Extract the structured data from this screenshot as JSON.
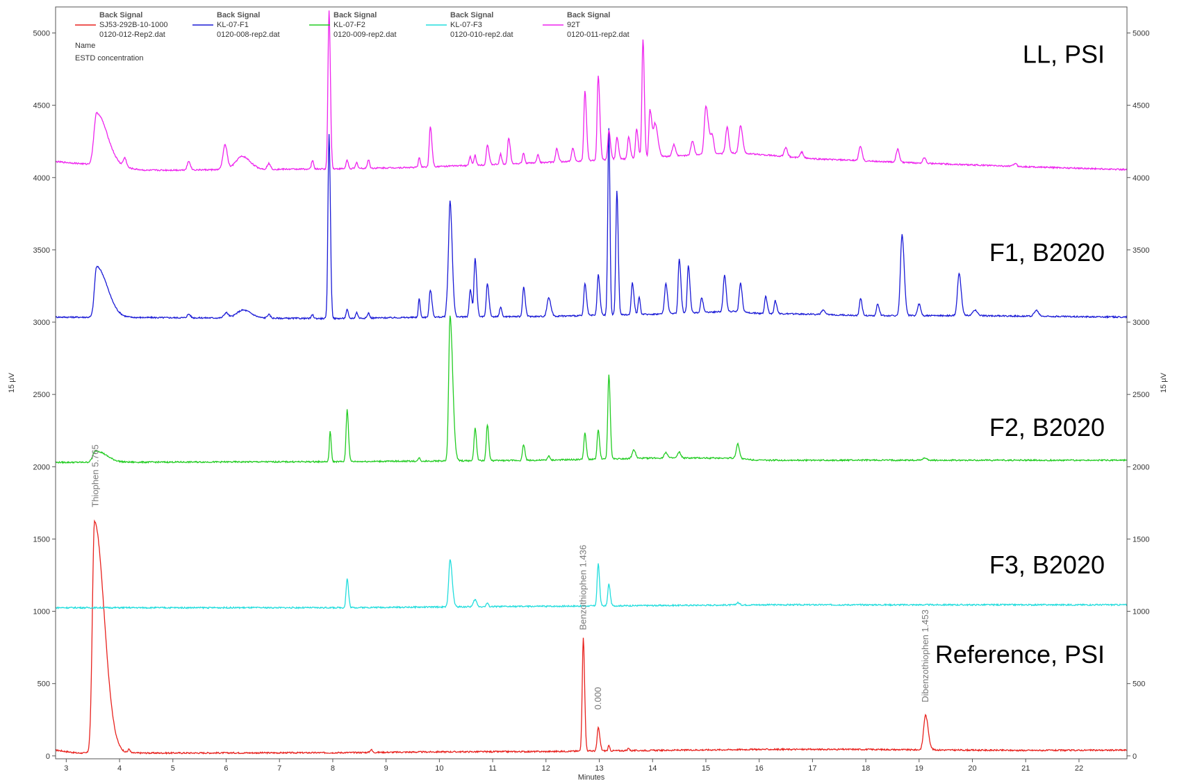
{
  "chart_data": {
    "type": "line",
    "xlabel": "Minutes",
    "ylabel": "15 µV",
    "xlim": [
      2.8,
      22.9
    ],
    "ylim": [
      -20,
      5180
    ],
    "x_ticks": [
      3,
      4,
      5,
      6,
      7,
      8,
      9,
      10,
      11,
      12,
      13,
      14,
      15,
      16,
      17,
      18,
      19,
      20,
      21,
      22
    ],
    "y_ticks": [
      0,
      500,
      1000,
      1500,
      2000,
      2500,
      3000,
      3500,
      4000,
      4500,
      5000
    ],
    "legend": {
      "position": "top-left",
      "header": "Back Signal",
      "row_name_label": "Name",
      "row_conc_label": "ESTD concentration",
      "entries": [
        {
          "sample": "SJ53-292B-10-1000",
          "file": "0120-012-Rep2.dat",
          "color": "#e8211d"
        },
        {
          "sample": "KL-07-F1",
          "file": "0120-008-rep2.dat",
          "color": "#1a1ad6"
        },
        {
          "sample": "KL-07-F2",
          "file": "0120-009-rep2.dat",
          "color": "#22cc22"
        },
        {
          "sample": "KL-07-F3",
          "file": "0120-010-rep2.dat",
          "color": "#22dddd"
        },
        {
          "sample": "92T",
          "file": "0120-011-rep2.dat",
          "color": "#ee22ee"
        }
      ]
    },
    "trace_labels": [
      {
        "text": "LL, PSI",
        "y": 4850
      },
      {
        "text": "F1, B2020",
        "y": 3480
      },
      {
        "text": "F2, B2020",
        "y": 2270
      },
      {
        "text": "F3, B2020",
        "y": 1320
      },
      {
        "text": "Reference, PSI",
        "y": 700
      }
    ],
    "series": [
      {
        "name": "SJ53-292B-10-1000",
        "color": "#e8211d",
        "baseline": [
          [
            2.8,
            40
          ],
          [
            3.2,
            20
          ],
          [
            5,
            20
          ],
          [
            8,
            22
          ],
          [
            10,
            28
          ],
          [
            12,
            30
          ],
          [
            13,
            35
          ],
          [
            14,
            38
          ],
          [
            16,
            45
          ],
          [
            18,
            45
          ],
          [
            19,
            42
          ],
          [
            21,
            38
          ],
          [
            22.9,
            40
          ]
        ],
        "peaks": [
          {
            "x": 3.53,
            "h": 1600,
            "wl": 0.04,
            "wr": 0.18
          },
          {
            "x": 4.18,
            "h": 25,
            "wl": 0.02,
            "wr": 0.02
          },
          {
            "x": 8.72,
            "h": 20,
            "wl": 0.02,
            "wr": 0.02
          },
          {
            "x": 12.7,
            "h": 780,
            "wl": 0.02,
            "wr": 0.025
          },
          {
            "x": 12.98,
            "h": 160,
            "wl": 0.02,
            "wr": 0.03
          },
          {
            "x": 13.18,
            "h": 35,
            "wl": 0.015,
            "wr": 0.015
          },
          {
            "x": 13.55,
            "h": 20,
            "wl": 0.015,
            "wr": 0.015
          },
          {
            "x": 19.12,
            "h": 240,
            "wl": 0.035,
            "wr": 0.05
          }
        ]
      },
      {
        "name": "KL-07-F1",
        "color": "#1a1ad6",
        "baseline": [
          [
            2.8,
            3035
          ],
          [
            8,
            3025
          ],
          [
            10,
            3035
          ],
          [
            12,
            3040
          ],
          [
            14,
            3055
          ],
          [
            15.5,
            3075
          ],
          [
            16,
            3060
          ],
          [
            17,
            3055
          ],
          [
            18,
            3045
          ],
          [
            20,
            3045
          ],
          [
            22.9,
            3035
          ]
        ],
        "peaks": [
          {
            "x": 3.57,
            "h": 350,
            "wl": 0.04,
            "wr": 0.2
          },
          {
            "x": 5.3,
            "h": 25,
            "wl": 0.03,
            "wr": 0.03
          },
          {
            "x": 6.0,
            "h": 35,
            "wl": 0.04,
            "wr": 0.04
          },
          {
            "x": 6.32,
            "h": 55,
            "wl": 0.12,
            "wr": 0.15
          },
          {
            "x": 6.8,
            "h": 25,
            "wl": 0.03,
            "wr": 0.03
          },
          {
            "x": 7.62,
            "h": 25,
            "wl": 0.02,
            "wr": 0.02
          },
          {
            "x": 7.93,
            "h": 1280,
            "wl": 0.02,
            "wr": 0.025
          },
          {
            "x": 8.27,
            "h": 60,
            "wl": 0.02,
            "wr": 0.02
          },
          {
            "x": 8.45,
            "h": 40,
            "wl": 0.02,
            "wr": 0.02
          },
          {
            "x": 8.67,
            "h": 35,
            "wl": 0.02,
            "wr": 0.02
          },
          {
            "x": 9.62,
            "h": 130,
            "wl": 0.015,
            "wr": 0.02
          },
          {
            "x": 9.83,
            "h": 190,
            "wl": 0.02,
            "wr": 0.03
          },
          {
            "x": 10.15,
            "h": 120,
            "wl": 0.02,
            "wr": 0.02
          },
          {
            "x": 10.2,
            "h": 800,
            "wl": 0.025,
            "wr": 0.04
          },
          {
            "x": 10.58,
            "h": 190,
            "wl": 0.02,
            "wr": 0.03
          },
          {
            "x": 10.67,
            "h": 400,
            "wl": 0.02,
            "wr": 0.03
          },
          {
            "x": 10.9,
            "h": 230,
            "wl": 0.02,
            "wr": 0.03
          },
          {
            "x": 11.15,
            "h": 70,
            "wl": 0.02,
            "wr": 0.02
          },
          {
            "x": 11.58,
            "h": 200,
            "wl": 0.02,
            "wr": 0.03
          },
          {
            "x": 12.05,
            "h": 130,
            "wl": 0.03,
            "wr": 0.04
          },
          {
            "x": 12.73,
            "h": 220,
            "wl": 0.02,
            "wr": 0.03
          },
          {
            "x": 12.98,
            "h": 280,
            "wl": 0.02,
            "wr": 0.03
          },
          {
            "x": 13.18,
            "h": 1290,
            "wl": 0.02,
            "wr": 0.02
          },
          {
            "x": 13.33,
            "h": 860,
            "wl": 0.02,
            "wr": 0.025
          },
          {
            "x": 13.62,
            "h": 220,
            "wl": 0.02,
            "wr": 0.03
          },
          {
            "x": 13.75,
            "h": 120,
            "wl": 0.02,
            "wr": 0.02
          },
          {
            "x": 14.25,
            "h": 210,
            "wl": 0.025,
            "wr": 0.03
          },
          {
            "x": 14.5,
            "h": 380,
            "wl": 0.02,
            "wr": 0.03
          },
          {
            "x": 14.67,
            "h": 330,
            "wl": 0.02,
            "wr": 0.03
          },
          {
            "x": 14.92,
            "h": 100,
            "wl": 0.02,
            "wr": 0.03
          },
          {
            "x": 15.35,
            "h": 250,
            "wl": 0.025,
            "wr": 0.03
          },
          {
            "x": 15.65,
            "h": 200,
            "wl": 0.025,
            "wr": 0.03
          },
          {
            "x": 16.12,
            "h": 120,
            "wl": 0.02,
            "wr": 0.03
          },
          {
            "x": 16.3,
            "h": 90,
            "wl": 0.02,
            "wr": 0.03
          },
          {
            "x": 17.2,
            "h": 30,
            "wl": 0.03,
            "wr": 0.03
          },
          {
            "x": 17.9,
            "h": 120,
            "wl": 0.02,
            "wr": 0.03
          },
          {
            "x": 18.22,
            "h": 80,
            "wl": 0.02,
            "wr": 0.03
          },
          {
            "x": 18.68,
            "h": 560,
            "wl": 0.03,
            "wr": 0.04
          },
          {
            "x": 19.0,
            "h": 80,
            "wl": 0.03,
            "wr": 0.03
          },
          {
            "x": 19.75,
            "h": 290,
            "wl": 0.03,
            "wr": 0.04
          },
          {
            "x": 20.05,
            "h": 40,
            "wl": 0.04,
            "wr": 0.04
          },
          {
            "x": 21.2,
            "h": 40,
            "wl": 0.04,
            "wr": 0.04
          }
        ]
      },
      {
        "name": "KL-07-F2",
        "color": "#22cc22",
        "baseline": [
          [
            2.8,
            2030
          ],
          [
            8,
            2035
          ],
          [
            10,
            2040
          ],
          [
            12,
            2045
          ],
          [
            14,
            2060
          ],
          [
            15.5,
            2060
          ],
          [
            16,
            2045
          ],
          [
            22.9,
            2045
          ]
        ],
        "peaks": [
          {
            "x": 3.55,
            "h": 80,
            "wl": 0.05,
            "wr": 0.2
          },
          {
            "x": 7.95,
            "h": 210,
            "wl": 0.015,
            "wr": 0.02
          },
          {
            "x": 8.27,
            "h": 360,
            "wl": 0.02,
            "wr": 0.025
          },
          {
            "x": 9.62,
            "h": 25,
            "wl": 0.015,
            "wr": 0.015
          },
          {
            "x": 10.2,
            "h": 1000,
            "wl": 0.025,
            "wr": 0.05
          },
          {
            "x": 10.67,
            "h": 230,
            "wl": 0.02,
            "wr": 0.025
          },
          {
            "x": 10.9,
            "h": 250,
            "wl": 0.02,
            "wr": 0.025
          },
          {
            "x": 11.58,
            "h": 110,
            "wl": 0.02,
            "wr": 0.025
          },
          {
            "x": 12.05,
            "h": 30,
            "wl": 0.02,
            "wr": 0.02
          },
          {
            "x": 12.73,
            "h": 180,
            "wl": 0.02,
            "wr": 0.025
          },
          {
            "x": 12.98,
            "h": 200,
            "wl": 0.02,
            "wr": 0.025
          },
          {
            "x": 13.18,
            "h": 580,
            "wl": 0.02,
            "wr": 0.025
          },
          {
            "x": 13.65,
            "h": 60,
            "wl": 0.03,
            "wr": 0.03
          },
          {
            "x": 14.25,
            "h": 40,
            "wl": 0.03,
            "wr": 0.03
          },
          {
            "x": 14.5,
            "h": 40,
            "wl": 0.03,
            "wr": 0.03
          },
          {
            "x": 15.6,
            "h": 100,
            "wl": 0.03,
            "wr": 0.03
          },
          {
            "x": 19.1,
            "h": 15,
            "wl": 0.04,
            "wr": 0.04
          }
        ]
      },
      {
        "name": "KL-07-F3",
        "color": "#22dddd",
        "baseline": [
          [
            2.8,
            1025
          ],
          [
            8,
            1025
          ],
          [
            10,
            1030
          ],
          [
            14,
            1040
          ],
          [
            16,
            1045
          ],
          [
            22.9,
            1045
          ]
        ],
        "peaks": [
          {
            "x": 8.27,
            "h": 200,
            "wl": 0.02,
            "wr": 0.025
          },
          {
            "x": 10.2,
            "h": 330,
            "wl": 0.025,
            "wr": 0.04
          },
          {
            "x": 10.67,
            "h": 50,
            "wl": 0.03,
            "wr": 0.03
          },
          {
            "x": 10.9,
            "h": 25,
            "wl": 0.02,
            "wr": 0.02
          },
          {
            "x": 12.98,
            "h": 290,
            "wl": 0.02,
            "wr": 0.025
          },
          {
            "x": 13.18,
            "h": 150,
            "wl": 0.02,
            "wr": 0.025
          },
          {
            "x": 15.6,
            "h": 15,
            "wl": 0.03,
            "wr": 0.03
          }
        ]
      },
      {
        "name": "92T",
        "color": "#ee22ee",
        "baseline": [
          [
            2.8,
            4110
          ],
          [
            3.5,
            4090
          ],
          [
            4.5,
            4050
          ],
          [
            6,
            4055
          ],
          [
            8,
            4060
          ],
          [
            9.5,
            4070
          ],
          [
            11,
            4090
          ],
          [
            13,
            4120
          ],
          [
            14,
            4140
          ],
          [
            15.5,
            4170
          ],
          [
            16,
            4160
          ],
          [
            17,
            4130
          ],
          [
            19,
            4100
          ],
          [
            21,
            4075
          ],
          [
            22.9,
            4055
          ]
        ],
        "peaks": [
          {
            "x": 3.57,
            "h": 360,
            "wl": 0.05,
            "wr": 0.2
          },
          {
            "x": 4.1,
            "h": 60,
            "wl": 0.03,
            "wr": 0.03
          },
          {
            "x": 5.3,
            "h": 60,
            "wl": 0.03,
            "wr": 0.03
          },
          {
            "x": 5.98,
            "h": 170,
            "wl": 0.04,
            "wr": 0.04
          },
          {
            "x": 6.3,
            "h": 90,
            "wl": 0.12,
            "wr": 0.15
          },
          {
            "x": 6.8,
            "h": 40,
            "wl": 0.03,
            "wr": 0.03
          },
          {
            "x": 7.62,
            "h": 60,
            "wl": 0.02,
            "wr": 0.02
          },
          {
            "x": 7.93,
            "h": 1100,
            "wl": 0.02,
            "wr": 0.025
          },
          {
            "x": 8.27,
            "h": 60,
            "wl": 0.02,
            "wr": 0.02
          },
          {
            "x": 8.45,
            "h": 40,
            "wl": 0.02,
            "wr": 0.02
          },
          {
            "x": 8.67,
            "h": 60,
            "wl": 0.02,
            "wr": 0.02
          },
          {
            "x": 9.62,
            "h": 70,
            "wl": 0.015,
            "wr": 0.02
          },
          {
            "x": 9.83,
            "h": 280,
            "wl": 0.02,
            "wr": 0.03
          },
          {
            "x": 10.58,
            "h": 60,
            "wl": 0.02,
            "wr": 0.02
          },
          {
            "x": 10.67,
            "h": 70,
            "wl": 0.02,
            "wr": 0.02
          },
          {
            "x": 10.9,
            "h": 140,
            "wl": 0.02,
            "wr": 0.03
          },
          {
            "x": 11.15,
            "h": 70,
            "wl": 0.02,
            "wr": 0.02
          },
          {
            "x": 11.3,
            "h": 180,
            "wl": 0.02,
            "wr": 0.03
          },
          {
            "x": 11.58,
            "h": 70,
            "wl": 0.02,
            "wr": 0.02
          },
          {
            "x": 11.85,
            "h": 60,
            "wl": 0.02,
            "wr": 0.02
          },
          {
            "x": 12.2,
            "h": 90,
            "wl": 0.02,
            "wr": 0.03
          },
          {
            "x": 12.5,
            "h": 90,
            "wl": 0.02,
            "wr": 0.03
          },
          {
            "x": 12.73,
            "h": 480,
            "wl": 0.02,
            "wr": 0.03
          },
          {
            "x": 12.98,
            "h": 580,
            "wl": 0.02,
            "wr": 0.03
          },
          {
            "x": 13.18,
            "h": 200,
            "wl": 0.02,
            "wr": 0.03
          },
          {
            "x": 13.33,
            "h": 150,
            "wl": 0.02,
            "wr": 0.03
          },
          {
            "x": 13.55,
            "h": 150,
            "wl": 0.02,
            "wr": 0.03
          },
          {
            "x": 13.7,
            "h": 200,
            "wl": 0.02,
            "wr": 0.03
          },
          {
            "x": 13.82,
            "h": 820,
            "wl": 0.02,
            "wr": 0.025
          },
          {
            "x": 13.95,
            "h": 330,
            "wl": 0.02,
            "wr": 0.04
          },
          {
            "x": 14.05,
            "h": 220,
            "wl": 0.03,
            "wr": 0.05
          },
          {
            "x": 14.4,
            "h": 80,
            "wl": 0.03,
            "wr": 0.03
          },
          {
            "x": 14.75,
            "h": 100,
            "wl": 0.03,
            "wr": 0.03
          },
          {
            "x": 15.0,
            "h": 330,
            "wl": 0.03,
            "wr": 0.05
          },
          {
            "x": 15.12,
            "h": 120,
            "wl": 0.03,
            "wr": 0.03
          },
          {
            "x": 15.4,
            "h": 180,
            "wl": 0.03,
            "wr": 0.03
          },
          {
            "x": 15.65,
            "h": 190,
            "wl": 0.03,
            "wr": 0.04
          },
          {
            "x": 16.5,
            "h": 60,
            "wl": 0.03,
            "wr": 0.03
          },
          {
            "x": 16.8,
            "h": 40,
            "wl": 0.03,
            "wr": 0.03
          },
          {
            "x": 17.9,
            "h": 100,
            "wl": 0.03,
            "wr": 0.03
          },
          {
            "x": 18.6,
            "h": 90,
            "wl": 0.03,
            "wr": 0.03
          },
          {
            "x": 19.1,
            "h": 40,
            "wl": 0.03,
            "wr": 0.03
          },
          {
            "x": 20.8,
            "h": 20,
            "wl": 0.03,
            "wr": 0.03
          }
        ]
      }
    ],
    "annotations": [
      {
        "text": "Thiophen 5.765",
        "x": 3.55,
        "y": 1720,
        "color": "#777777"
      },
      {
        "text": "Benzothiophen 1.436",
        "x": 12.7,
        "y": 870,
        "color": "#777777"
      },
      {
        "text": "0.000",
        "x": 12.98,
        "y": 320,
        "color": "#777777"
      },
      {
        "text": "Dibenzothiophen 1.453",
        "x": 19.12,
        "y": 370,
        "color": "#777777"
      }
    ]
  }
}
